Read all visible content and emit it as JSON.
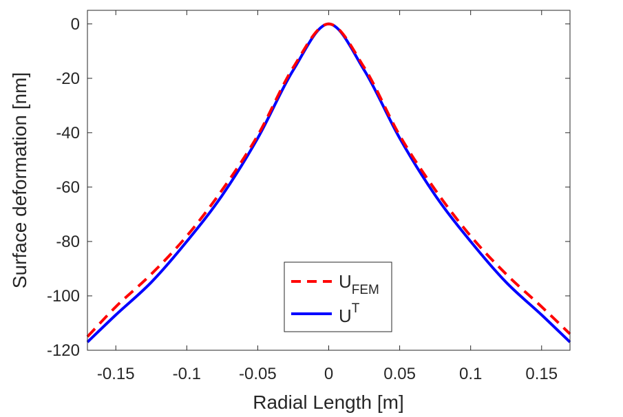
{
  "chart_data": {
    "type": "line",
    "title": "",
    "xlabel": "Radial Length [m]",
    "ylabel": "Surface deformation [nm]",
    "xlim": [
      -0.17,
      0.17
    ],
    "ylim": [
      -120,
      5
    ],
    "grid": false,
    "legend_position": "bottom-center",
    "x_ticks": [
      -0.15,
      -0.1,
      -0.05,
      0,
      0.05,
      0.1,
      0.15
    ],
    "x_tick_labels": [
      "-0.15",
      "-0.1",
      "-0.05",
      "0",
      "0.05",
      "0.1",
      "0.15"
    ],
    "y_ticks": [
      0,
      -20,
      -40,
      -60,
      -80,
      -100,
      -120
    ],
    "y_tick_labels": [
      "0",
      "-20",
      "-40",
      "-60",
      "-80",
      "-100",
      "-120"
    ],
    "series": [
      {
        "name": "U_FEM",
        "legend_main": "U",
        "legend_sub": "FEM",
        "color": "#ff0000",
        "style": "dashed",
        "x": [
          -0.17,
          -0.15,
          -0.125,
          -0.1,
          -0.075,
          -0.05,
          -0.025,
          0,
          0.025,
          0.05,
          0.075,
          0.1,
          0.125,
          0.15,
          0.17
        ],
        "y": [
          -115,
          -104,
          -92,
          -78,
          -61,
          -41,
          -16,
          0,
          -16,
          -41,
          -61,
          -78,
          -92,
          -104,
          -114
        ]
      },
      {
        "name": "U^T",
        "legend_main": "U",
        "legend_sup": "T",
        "color": "#0000ff",
        "style": "solid",
        "x": [
          -0.17,
          -0.15,
          -0.125,
          -0.1,
          -0.075,
          -0.05,
          -0.025,
          0,
          0.025,
          0.05,
          0.075,
          0.1,
          0.125,
          0.15,
          0.17
        ],
        "y": [
          -117,
          -107,
          -95,
          -80,
          -63,
          -42,
          -17,
          0,
          -17,
          -42,
          -63,
          -80,
          -95,
          -107,
          -117
        ]
      }
    ]
  }
}
